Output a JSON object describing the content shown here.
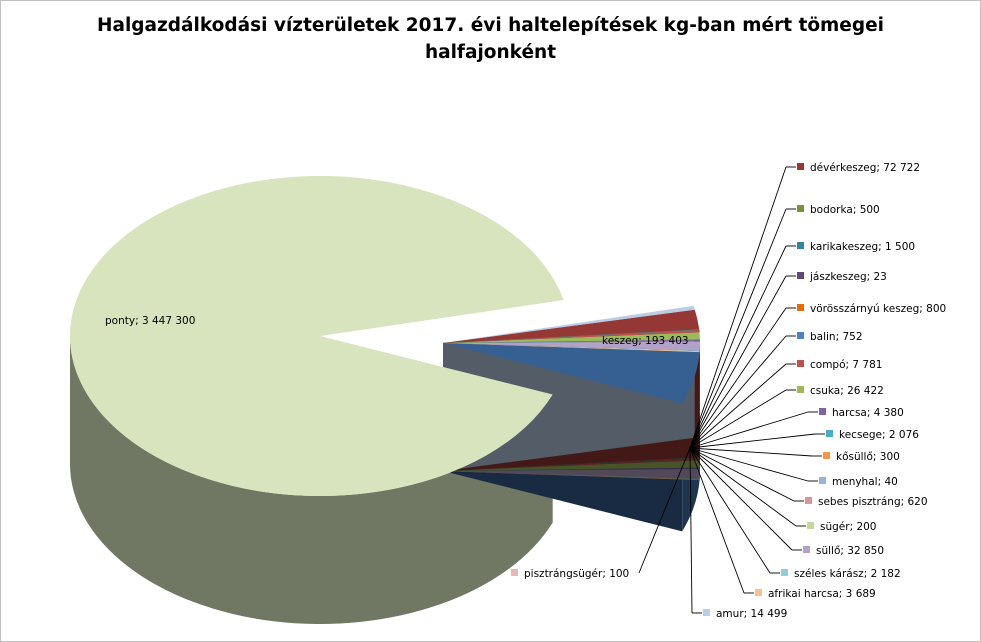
{
  "chart_data": {
    "type": "pie",
    "title_line1": "Halgazdálkodási vízterületek 2017. évi haltelepítések kg-ban mért tömegei",
    "title_line2": "halfajonként",
    "slices": [
      {
        "name": "amur",
        "value": 14499,
        "label": "amur; 14 499",
        "color": "#b9cde5"
      },
      {
        "name": "dévérkeszeg",
        "value": 72722,
        "label": "dévérkeszeg; 72 722",
        "color": "#953735"
      },
      {
        "name": "bodorka",
        "value": 500,
        "label": "bodorka; 500",
        "color": "#76923c"
      },
      {
        "name": "karikakeszeg",
        "value": 1500,
        "label": "karikakeszeg; 1 500",
        "color": "#31859c"
      },
      {
        "name": "jászkeszeg",
        "value": 23,
        "label": "jászkeszeg; 23",
        "color": "#5f497a"
      },
      {
        "name": "vörösszárnyú keszeg",
        "value": 800,
        "label": "vörösszárnyú keszeg; 800",
        "color": "#e46c0a"
      },
      {
        "name": "balin",
        "value": 752,
        "label": "balin; 752",
        "color": "#4f81bd"
      },
      {
        "name": "compó",
        "value": 7781,
        "label": "compó; 7 781",
        "color": "#c0504d"
      },
      {
        "name": "csuka",
        "value": 26422,
        "label": "csuka; 26 422",
        "color": "#9bbb59"
      },
      {
        "name": "harcsa",
        "value": 4380,
        "label": "harcsa; 4 380",
        "color": "#8064a2"
      },
      {
        "name": "kecsege",
        "value": 2076,
        "label": "kecsege; 2 076",
        "color": "#4bacc6"
      },
      {
        "name": "kősüllő",
        "value": 300,
        "label": "kősüllő; 300",
        "color": "#f79646"
      },
      {
        "name": "menyhal",
        "value": 40,
        "label": "menyhal; 40",
        "color": "#95b3d7"
      },
      {
        "name": "sebes pisztráng",
        "value": 620,
        "label": "sebes pisztráng; 620",
        "color": "#d99694"
      },
      {
        "name": "sügér",
        "value": 200,
        "label": "sügér; 200",
        "color": "#c3d69b"
      },
      {
        "name": "süllő",
        "value": 32850,
        "label": "süllő; 32 850",
        "color": "#b3a2c7"
      },
      {
        "name": "széles kárász",
        "value": 2182,
        "label": "széles kárász; 2 182",
        "color": "#93cddd"
      },
      {
        "name": "afrikai harcsa",
        "value": 3689,
        "label": "afrikai harcsa; 3 689",
        "color": "#fac090"
      },
      {
        "name": "pisztrángsügér",
        "value": 100,
        "label": "pisztrángsügér; 100",
        "color": "#e6b9b8"
      },
      {
        "name": "keszeg",
        "value": 193403,
        "label": "keszeg; 193 403",
        "color": "#376092"
      },
      {
        "name": "ponty",
        "value": 3447300,
        "label": "ponty; 3 447 300",
        "color": "#d7e4bd"
      }
    ]
  }
}
